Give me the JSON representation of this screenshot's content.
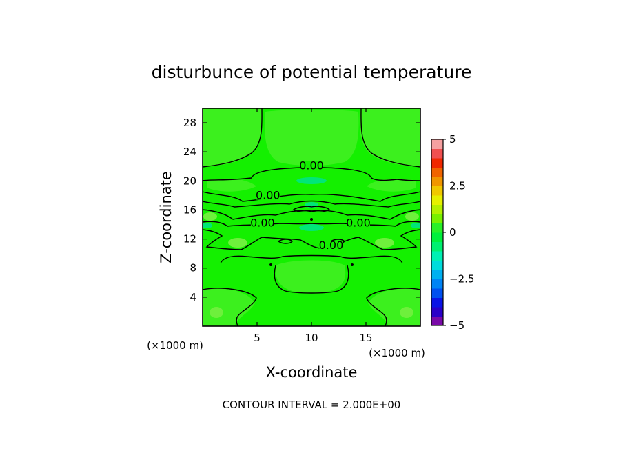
{
  "chart_data": {
    "type": "heatmap",
    "title": "disturbunce of potential temperature",
    "xlabel": "X-coordinate",
    "ylabel": "Z-coordinate",
    "x_unit": "(×1000 m)",
    "y_unit": "(×1000 m)",
    "xlim": [
      0,
      20
    ],
    "ylim": [
      0,
      30
    ],
    "x_ticks": [
      5,
      10,
      15
    ],
    "y_ticks": [
      4,
      8,
      12,
      16,
      20,
      24,
      28
    ],
    "x_tick_labels": [
      "5",
      "10",
      "15"
    ],
    "y_tick_labels": [
      "4",
      "8",
      "12",
      "16",
      "20",
      "24",
      "28"
    ],
    "contour_interval_text": "CONTOUR INTERVAL = 2.000E+00",
    "contour_labels": [
      {
        "text": "0.00",
        "x": 10,
        "y": 21.8
      },
      {
        "text": "0.00",
        "x": 6,
        "y": 17.7
      },
      {
        "text": "0.00",
        "x": 5.5,
        "y": 13.9
      },
      {
        "text": "0.00",
        "x": 14.3,
        "y": 13.9
      },
      {
        "text": "0.00",
        "x": 11.8,
        "y": 10.8
      }
    ],
    "colorbar": {
      "min": -5,
      "max": 5,
      "tick_values": [
        5,
        2.5,
        0,
        -2.5,
        -5
      ],
      "tick_labels": [
        "5",
        "2.5",
        "0",
        "−2.5",
        "−5"
      ],
      "levels": [
        {
          "from": -5.0,
          "to": -4.5,
          "color": "#7a0aa8"
        },
        {
          "from": -4.5,
          "to": -4.0,
          "color": "#2a00c8"
        },
        {
          "from": -4.0,
          "to": -3.5,
          "color": "#0a14e6"
        },
        {
          "from": -3.5,
          "to": -3.0,
          "color": "#0050f0"
        },
        {
          "from": -3.0,
          "to": -2.5,
          "color": "#0084f5"
        },
        {
          "from": -2.5,
          "to": -2.0,
          "color": "#00b0f0"
        },
        {
          "from": -2.0,
          "to": -1.5,
          "color": "#00dcdc"
        },
        {
          "from": -1.5,
          "to": -1.0,
          "color": "#00f0b4"
        },
        {
          "from": -1.0,
          "to": -0.5,
          "color": "#00f070"
        },
        {
          "from": -0.5,
          "to": 0.0,
          "color": "#00f03c"
        },
        {
          "from": 0.0,
          "to": 0.5,
          "color": "#28f028"
        },
        {
          "from": 0.5,
          "to": 1.0,
          "color": "#78f000"
        },
        {
          "from": 1.0,
          "to": 1.5,
          "color": "#b4f000"
        },
        {
          "from": 1.5,
          "to": 2.0,
          "color": "#e6f000"
        },
        {
          "from": 2.0,
          "to": 2.5,
          "color": "#f0c800"
        },
        {
          "from": 2.5,
          "to": 3.0,
          "color": "#f09600"
        },
        {
          "from": 3.0,
          "to": 3.5,
          "color": "#f06400"
        },
        {
          "from": 3.5,
          "to": 4.0,
          "color": "#f02800"
        },
        {
          "from": 4.0,
          "to": 4.5,
          "color": "#f05050"
        },
        {
          "from": 4.5,
          "to": 5.0,
          "color": "#f5a0a0"
        }
      ]
    },
    "field_colors": {
      "background": "#14f000",
      "positive_patch": "#3cf01e",
      "negative_patch": "#00e678",
      "light_patch": "#6ef03c"
    }
  }
}
